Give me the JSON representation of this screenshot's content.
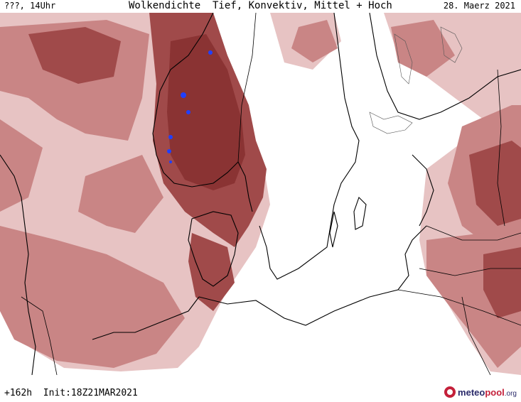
{
  "header": {
    "left": "???, 14Uhr",
    "title": "Wolkendichte  Tief, Konvektiv, Mittel + Hoch",
    "date": "28. Maerz 2021"
  },
  "footer": {
    "run_info": "+162h  Init:18Z21MAR2021",
    "logo_text_a": "meteo",
    "logo_text_b": "pool",
    "logo_text_c": ".org"
  },
  "colors": {
    "cloud_light": "#e9c7c7",
    "cloud_mid": "#c98585",
    "cloud_dark": "#a04a4a",
    "cloud_darkest": "#8a3333",
    "coastline": "#000000",
    "lakes": "#2040ff",
    "background": "#ffffff"
  },
  "map": {
    "region": "Northern Europe / Baltic Sea",
    "legend": "none"
  }
}
